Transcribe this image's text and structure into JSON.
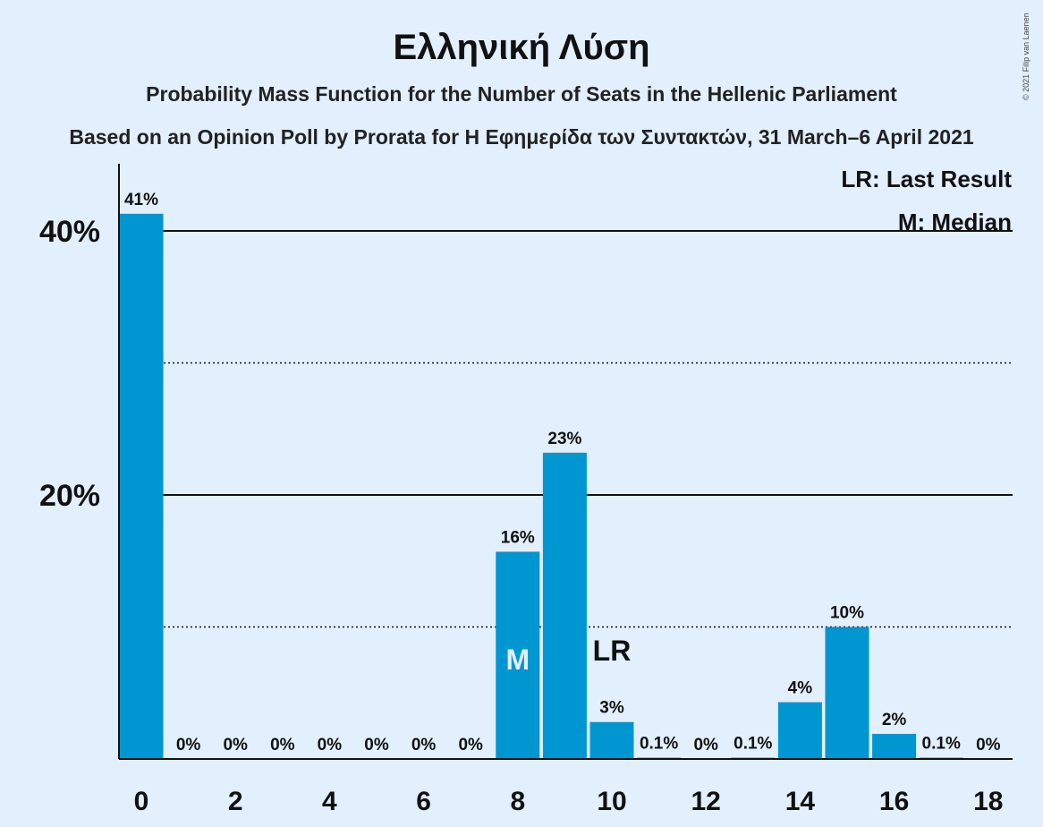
{
  "copyright": "© 2021 Filip van Laenen",
  "chart_data": {
    "type": "bar",
    "title": "Ελληνική Λύση",
    "subtitle": "Probability Mass Function for the Number of Seats in the Hellenic Parliament",
    "subtitle2": "Based on an Opinion Poll by Prorata for Η Εφημερίδα των Συντακτών, 31 March–6 April 2021",
    "xlabel": "",
    "ylabel": "",
    "categories": [
      0,
      1,
      2,
      3,
      4,
      5,
      6,
      7,
      8,
      9,
      10,
      11,
      12,
      13,
      14,
      15,
      16,
      17,
      18
    ],
    "values": [
      41.3,
      0,
      0,
      0,
      0,
      0,
      0,
      0,
      15.7,
      23.2,
      2.8,
      0.1,
      0,
      0.1,
      4.3,
      10.0,
      1.9,
      0.1,
      0
    ],
    "labels": [
      "41%",
      "0%",
      "0%",
      "0%",
      "0%",
      "0%",
      "0%",
      "0%",
      "16%",
      "23%",
      "3%",
      "0.1%",
      "0%",
      "0.1%",
      "4%",
      "10%",
      "2%",
      "0.1%",
      "0%"
    ],
    "xticks": [
      0,
      2,
      4,
      6,
      8,
      10,
      12,
      14,
      16,
      18
    ],
    "ylim": [
      0,
      45
    ],
    "yticks_major": [
      {
        "value": 20,
        "label": "20%"
      },
      {
        "value": 40,
        "label": "40%"
      }
    ],
    "yticks_minor": [
      10,
      30
    ],
    "median_seat": 8,
    "median_marker": "M",
    "last_result_seat": 10,
    "last_result_marker": "LR",
    "legend": [
      "LR: Last Result",
      "M: Median"
    ],
    "legend_position": "top-right",
    "bar_color": "#0096d1",
    "grid": true
  }
}
